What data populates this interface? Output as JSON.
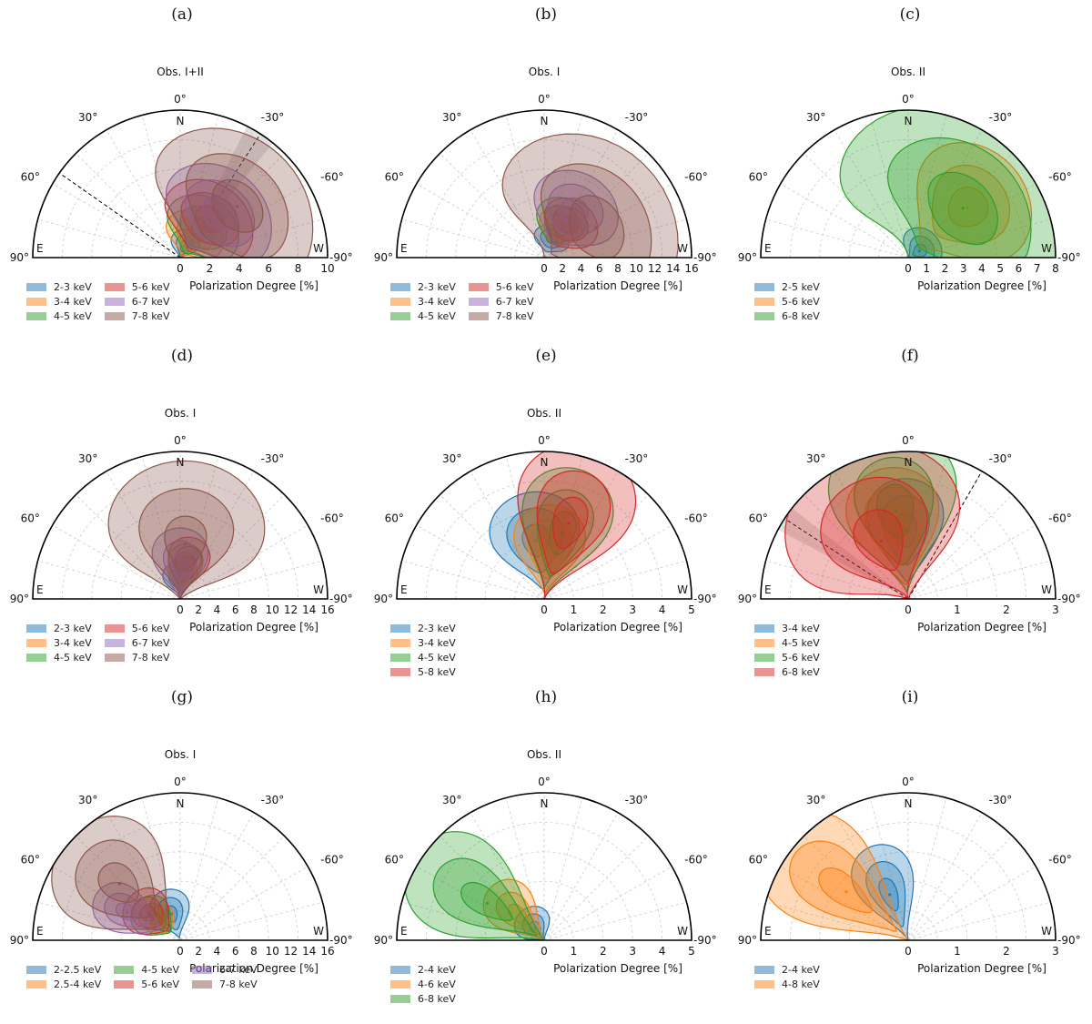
{
  "figure": {
    "north_label": "N",
    "east_label": "E",
    "west_label": "W",
    "xlabel": "Polarization Degree [%]",
    "angle_labels": [
      "0°",
      "30°",
      "-30°",
      "60°",
      "-60°",
      "90°",
      "-90°"
    ]
  },
  "colors": {
    "blue": "#1f77b4",
    "orange": "#ff7f0e",
    "green": "#2ca02c",
    "red": "#d62728",
    "purple": "#9467bd",
    "brown": "#8c564b",
    "grid": "#cccccc",
    "shade": "#c8c8c8"
  },
  "chart_data": [
    {
      "type": "polar-contour",
      "label": "(a)",
      "title": "Obs. I+II",
      "rmax": 10,
      "rticks": [
        0,
        2,
        4,
        6,
        8,
        10
      ],
      "lines": [
        {
          "angle": -33,
          "shade": 6
        },
        {
          "angle": 55
        }
      ],
      "legend_cols": 2,
      "series": [
        {
          "name": "2-3 keV",
          "color": "blue",
          "pd": 0.8,
          "pa": -18,
          "sr": 0.38,
          "st": 0.3
        },
        {
          "name": "3-4 keV",
          "color": "orange",
          "pd": 1.8,
          "pa": -33,
          "sr": 0.55,
          "st": 0.35
        },
        {
          "name": "4-5 keV",
          "color": "green",
          "pd": 2.5,
          "pa": -38,
          "sr": 0.7,
          "st": 0.33
        },
        {
          "name": "5-6 keV",
          "color": "red",
          "pd": 3.3,
          "pa": -38,
          "sr": 0.8,
          "st": 0.32
        },
        {
          "name": "6-7 keV",
          "color": "purple",
          "pd": 4.0,
          "pa": -42,
          "sr": 1.0,
          "st": 0.32
        },
        {
          "name": "7-8 keV",
          "color": "brown",
          "pd": 5.2,
          "pa": -48,
          "sr": 1.5,
          "st": 0.38
        }
      ]
    },
    {
      "type": "polar-contour",
      "label": "(b)",
      "title": "Obs. I",
      "rmax": 16,
      "rticks": [
        0,
        2,
        4,
        6,
        8,
        10,
        12,
        14,
        16
      ],
      "lines": [],
      "legend_cols": 2,
      "series": [
        {
          "name": "2-3 keV",
          "color": "blue",
          "pd": 2.2,
          "pa": -22,
          "sr": 0.5,
          "st": 0.28
        },
        {
          "name": "3-4 keV",
          "color": "orange",
          "pd": 3.8,
          "pa": -27,
          "sr": 0.7,
          "st": 0.2
        },
        {
          "name": "4-5 keV",
          "color": "green",
          "pd": 4.3,
          "pa": -24,
          "sr": 0.85,
          "st": 0.2
        },
        {
          "name": "5-6 keV",
          "color": "red",
          "pd": 4.5,
          "pa": -38,
          "sr": 0.9,
          "st": 0.22
        },
        {
          "name": "6-7 keV",
          "color": "purple",
          "pd": 6.0,
          "pa": -33,
          "sr": 1.4,
          "st": 0.25
        },
        {
          "name": "7-8 keV",
          "color": "brown",
          "pd": 6.5,
          "pa": -60,
          "sr": 2.8,
          "st": 0.55
        }
      ]
    },
    {
      "type": "polar-contour",
      "label": "(c)",
      "title": "Obs. II",
      "rmax": 8,
      "rticks": [
        0,
        1,
        2,
        3,
        4,
        5,
        6,
        7,
        8
      ],
      "lines": [],
      "legend_cols": 1,
      "series": [
        {
          "name": "2-5 keV",
          "color": "blue",
          "pd": 0.7,
          "pa": -60,
          "sr": 0.4,
          "st": 0.45
        },
        {
          "name": "5-6 keV",
          "color": "orange",
          "pd": 4.2,
          "pa": -50,
          "sr": 1.1,
          "st": 0.25
        },
        {
          "name": "6-8 keV",
          "color": "green",
          "pd": 4.0,
          "pa": -48,
          "sr": 1.6,
          "st": 0.55
        }
      ]
    },
    {
      "type": "polar-contour",
      "label": "(d)",
      "title": "Obs. I",
      "rmax": 16,
      "rticks": [
        0,
        2,
        4,
        6,
        8,
        10,
        12,
        14,
        16
      ],
      "lines": [],
      "legend_cols": 2,
      "series": [
        {
          "name": "2-3 keV",
          "color": "blue",
          "pd": 2.2,
          "pa": 5,
          "sr": 0.6,
          "st": 0.22
        },
        {
          "name": "3-4 keV",
          "color": "orange",
          "pd": 2.5,
          "pa": -5,
          "sr": 0.7,
          "st": 0.18
        },
        {
          "name": "4-5 keV",
          "color": "green",
          "pd": 3.3,
          "pa": -8,
          "sr": 0.9,
          "st": 0.16
        },
        {
          "name": "5-6 keV",
          "color": "red",
          "pd": 3.8,
          "pa": -12,
          "sr": 1.0,
          "st": 0.17
        },
        {
          "name": "6-7 keV",
          "color": "purple",
          "pd": 3.5,
          "pa": 0,
          "sr": 1.4,
          "st": 0.22
        },
        {
          "name": "7-8 keV",
          "color": "brown",
          "pd": 6.0,
          "pa": -5,
          "sr": 3.0,
          "st": 0.35
        }
      ]
    },
    {
      "type": "polar-contour",
      "label": "(e)",
      "title": "Obs. II",
      "rmax": 5,
      "rticks": [
        0,
        1,
        2,
        3,
        4,
        5
      ],
      "lines": [],
      "legend_cols": 1,
      "series": [
        {
          "name": "2-3 keV",
          "color": "blue",
          "pd": 2.0,
          "pa": 8,
          "sr": 0.55,
          "st": 0.22
        },
        {
          "name": "3-4 keV",
          "color": "orange",
          "pd": 1.7,
          "pa": -5,
          "sr": 0.5,
          "st": 0.2
        },
        {
          "name": "4-5 keV",
          "color": "green",
          "pd": 2.3,
          "pa": -15,
          "sr": 0.75,
          "st": 0.18
        },
        {
          "name": "5-8 keV",
          "color": "red",
          "pd": 2.7,
          "pa": -18,
          "sr": 0.9,
          "st": 0.2
        }
      ]
    },
    {
      "type": "polar-contour",
      "label": "(f)",
      "title": "",
      "rmax": 3,
      "rticks": [
        0,
        1,
        2,
        3
      ],
      "lines": [
        {
          "angle": 57,
          "shade": 5
        },
        {
          "angle": -30
        }
      ],
      "legend_cols": 1,
      "series": [
        {
          "name": "3-4 keV",
          "color": "blue",
          "pd": 1.4,
          "pa": 2,
          "sr": 0.35,
          "st": 0.16
        },
        {
          "name": "4-5 keV",
          "color": "orange",
          "pd": 1.5,
          "pa": 10,
          "sr": 0.4,
          "st": 0.18
        },
        {
          "name": "5-6 keV",
          "color": "green",
          "pd": 1.8,
          "pa": 8,
          "sr": 0.55,
          "st": 0.2
        },
        {
          "name": "6-8 keV",
          "color": "red",
          "pd": 1.3,
          "pa": 25,
          "sr": 0.65,
          "st": 0.35
        }
      ]
    },
    {
      "type": "polar-contour",
      "label": "(g)",
      "title": "Obs. I",
      "rmax": 16,
      "rticks": [
        0,
        2,
        4,
        6,
        8,
        10,
        12,
        14,
        16
      ],
      "lines": [],
      "legend_cols": 3,
      "series": [
        {
          "name": "2-2.5 keV",
          "color": "blue",
          "pd": 3.0,
          "pa": 18,
          "sr": 0.9,
          "st": 0.2
        },
        {
          "name": "2.5-4 keV",
          "color": "orange",
          "pd": 3.0,
          "pa": 45,
          "sr": 0.5,
          "st": 0.18
        },
        {
          "name": "4-5 keV",
          "color": "green",
          "pd": 3.8,
          "pa": 50,
          "sr": 0.8,
          "st": 0.18
        },
        {
          "name": "5-6 keV",
          "color": "red",
          "pd": 4.5,
          "pa": 50,
          "sr": 0.9,
          "st": 0.18
        },
        {
          "name": "6-7 keV",
          "color": "purple",
          "pd": 6.5,
          "pa": 62,
          "sr": 1.3,
          "st": 0.12
        },
        {
          "name": "7-8 keV",
          "color": "brown",
          "pd": 9.0,
          "pa": 47,
          "sr": 2.5,
          "st": 0.2
        }
      ]
    },
    {
      "type": "polar-contour",
      "label": "(h)",
      "title": "Obs. II",
      "rmax": 5,
      "rticks": [
        0,
        1,
        2,
        3,
        4,
        5
      ],
      "lines": [],
      "legend_cols": 1,
      "series": [
        {
          "name": "2-4 keV",
          "color": "blue",
          "pd": 0.5,
          "pa": 35,
          "sr": 0.25,
          "st": 0.3
        },
        {
          "name": "4-6 keV",
          "color": "orange",
          "pd": 1.2,
          "pa": 45,
          "sr": 0.45,
          "st": 0.18
        },
        {
          "name": "6-8 keV",
          "color": "green",
          "pd": 2.3,
          "pa": 57,
          "sr": 1.0,
          "st": 0.18
        }
      ]
    },
    {
      "type": "polar-contour",
      "label": "(i)",
      "title": "",
      "rmax": 3,
      "rticks": [
        0,
        1,
        2,
        3
      ],
      "lines": [],
      "legend_cols": 1,
      "series": [
        {
          "name": "2-4 keV",
          "color": "blue",
          "pd": 1.0,
          "pa": 22,
          "sr": 0.35,
          "st": 0.16
        },
        {
          "name": "4-8 keV",
          "color": "orange",
          "pd": 1.6,
          "pa": 52,
          "sr": 0.65,
          "st": 0.17
        }
      ]
    }
  ]
}
